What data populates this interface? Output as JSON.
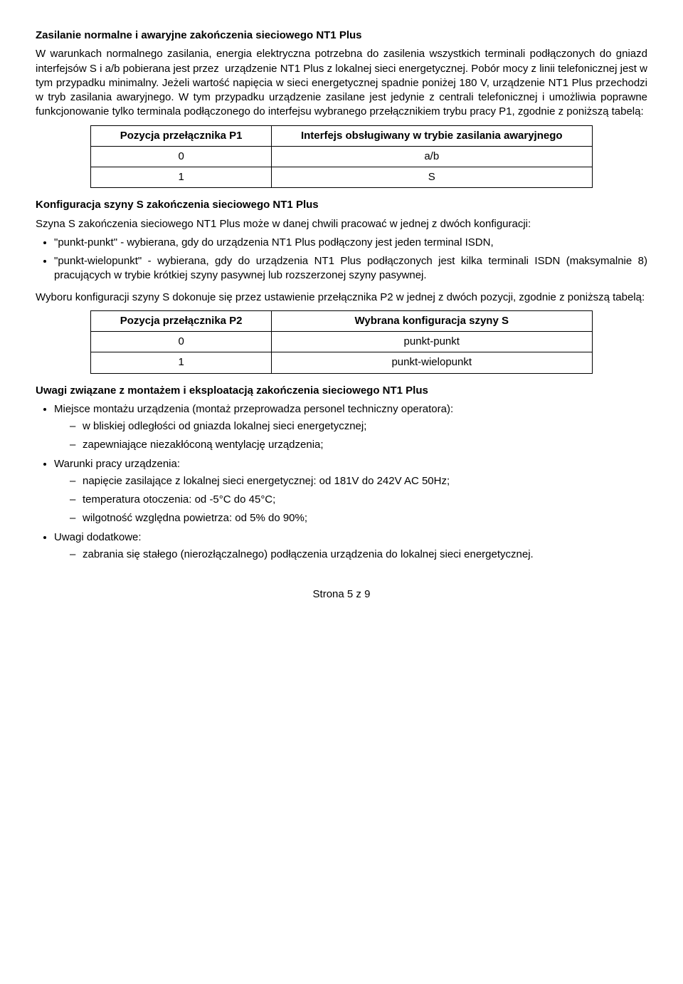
{
  "h1": "Zasilanie normalne i awaryjne zakończenia sieciowego NT1 Plus",
  "p1": "W warunkach normalnego zasilania, energia elektryczna potrzebna do zasilenia wszystkich terminali podłączonych do gniazd interfejsów S i a/b pobierana jest przez  urządzenie NT1 Plus z lokalnej sieci energetycznej. Pobór mocy z linii telefonicznej jest w tym przypadku minimalny. Jeżeli wartość napięcia w sieci energetycznej spadnie poniżej 180 V, urządzenie NT1 Plus przechodzi w tryb zasilania awaryjnego. W tym przypadku urządzenie zasilane jest jedynie z centrali telefonicznej i umożliwia poprawne funkcjonowanie tylko terminala podłączonego do interfejsu wybranego przełącznikiem trybu pracy P1, zgodnie z poniższą tabelą:",
  "t1": {
    "h1": "Pozycja przełącznika P1",
    "h2": "Interfejs obsługiwany w trybie zasilania awaryjnego",
    "rows": [
      [
        "0",
        "a/b"
      ],
      [
        "1",
        "S"
      ]
    ]
  },
  "h2": "Konfiguracja szyny S zakończenia sieciowego NT1 Plus",
  "p2": "Szyna S zakończenia sieciowego NT1 Plus może w danej chwili pracować w jednej z dwóch konfiguracji:",
  "b1": "\"punkt-punkt\" - wybierana, gdy do urządzenia NT1 Plus podłączony jest jeden terminal ISDN,",
  "b2": "\"punkt-wielopunkt\" - wybierana, gdy do urządzenia NT1 Plus podłączonych jest kilka terminali ISDN (maksymalnie 8) pracujących w trybie krótkiej szyny pasywnej lub rozszerzonej szyny pasywnej.",
  "p3": "Wyboru konfiguracji szyny S dokonuje się przez ustawienie przełącznika P2 w jednej z dwóch pozycji, zgodnie z poniższą tabelą:",
  "t2": {
    "h1": "Pozycja przełącznika P2",
    "h2": "Wybrana konfiguracja szyny S",
    "rows": [
      [
        "0",
        "punkt-punkt"
      ],
      [
        "1",
        "punkt-wielopunkt"
      ]
    ]
  },
  "h3": "Uwagi związane z montażem i eksploatacją zakończenia sieciowego NT1 Plus",
  "u1": "Miejsce montażu urządzenia (montaż przeprowadza personel techniczny operatora):",
  "u1a": "w bliskiej odległości od gniazda lokalnej sieci energetycznej;",
  "u1b": "zapewniające niezakłóconą wentylację urządzenia;",
  "u2": "Warunki pracy urządzenia:",
  "u2a": "napięcie zasilające z lokalnej sieci energetycznej: od 181V do 242V AC 50Hz;",
  "u2b": "temperatura otoczenia: od -5°C do 45°C;",
  "u2c": "wilgotność względna powietrza: od 5% do 90%;",
  "u3": "Uwagi dodatkowe:",
  "u3a": "zabrania się stałego (nierozłączalnego) podłączenia urządzenia do lokalnej sieci energetycznej.",
  "footer": "Strona 5 z 9",
  "tableStyle": {
    "col1_width": "36%",
    "col2_width": "64%"
  }
}
